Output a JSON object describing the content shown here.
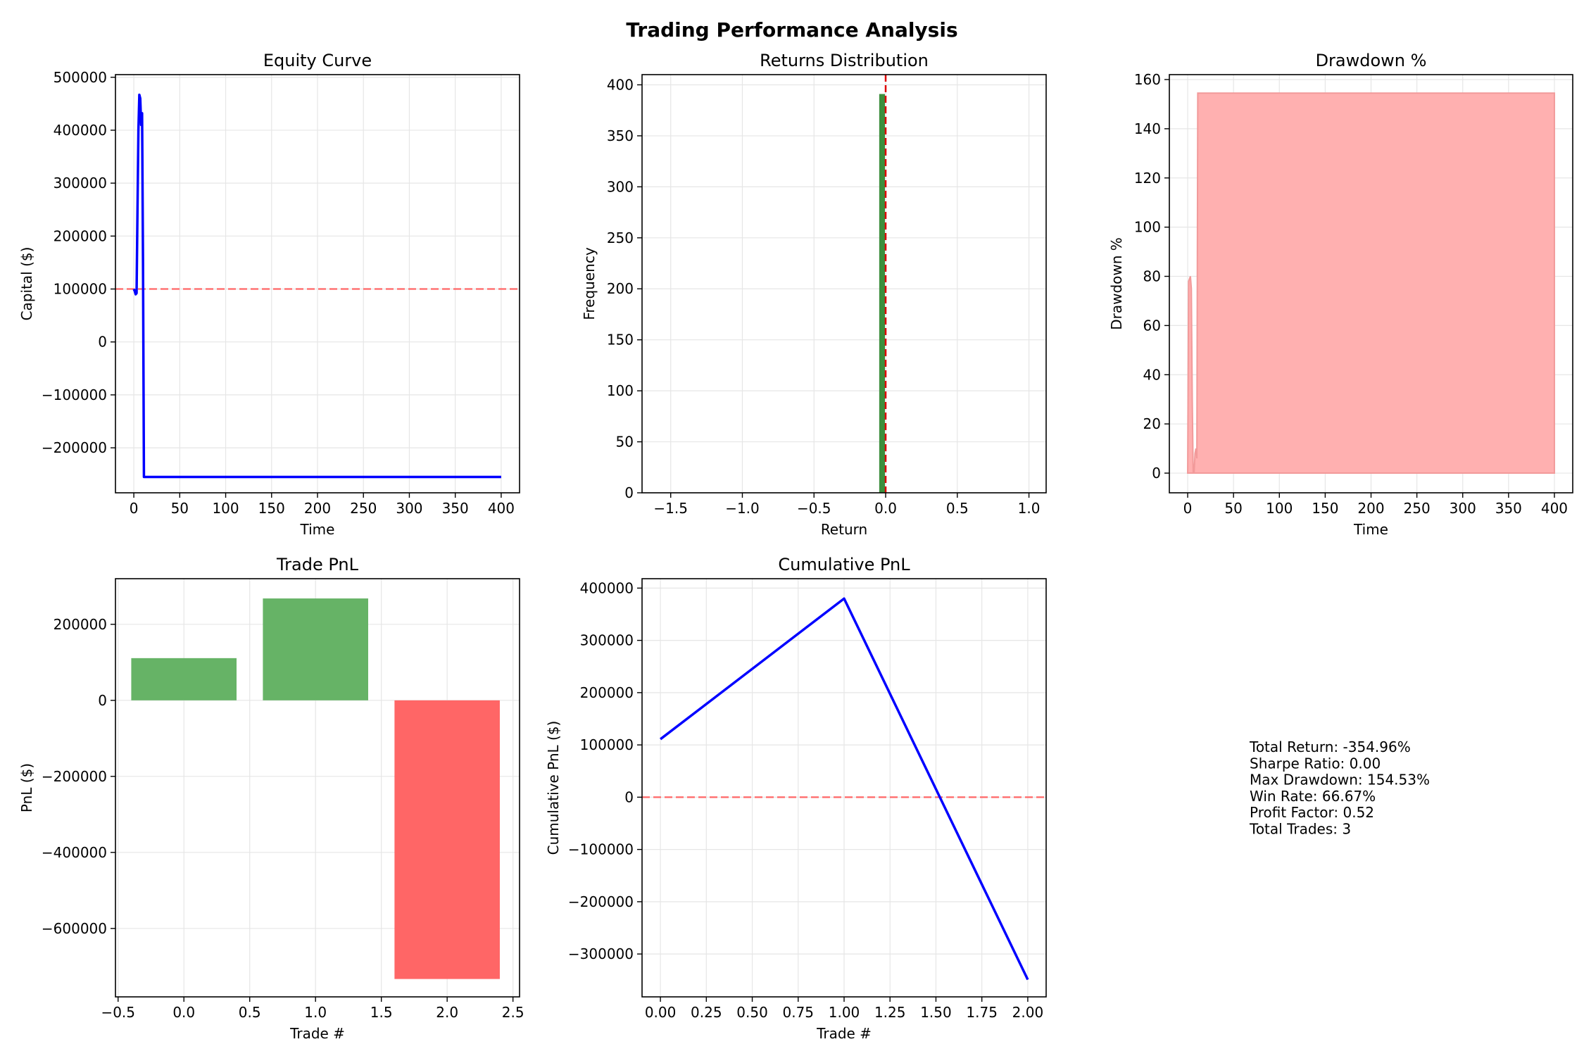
{
  "figure": {
    "title": "Trading Performance Analysis",
    "colors": {
      "equity_line": "#0000ff",
      "reference_line": "#ff6666",
      "hist_bar": "#3d8f3d",
      "zero_line": "#dd0000",
      "drawdown_fill": "#ffb0b0",
      "drawdown_edge": "#f29a9a",
      "win_bar": "#66b366",
      "loss_bar": "#ff6666",
      "grid": "#e6e6e6"
    }
  },
  "chart_data": [
    {
      "id": "equity",
      "type": "line",
      "title": "Equity Curve",
      "xlabel": "Time",
      "ylabel": "Capital ($)",
      "xlim": [
        -20,
        420
      ],
      "ylim": [
        -285000,
        505000
      ],
      "xticks": [
        0,
        50,
        100,
        150,
        200,
        250,
        300,
        350,
        400
      ],
      "xtick_labels": [
        "0",
        "50",
        "100",
        "150",
        "200",
        "250",
        "300",
        "350",
        "400"
      ],
      "yticks": [
        -200000,
        -100000,
        0,
        100000,
        200000,
        300000,
        400000,
        500000
      ],
      "ytick_labels": [
        "−200000",
        "−100000",
        "0",
        "100000",
        "200000",
        "300000",
        "400000",
        "500000"
      ],
      "grid": true,
      "reference_line": {
        "axis": "y",
        "value": 100000,
        "style": "dashed"
      },
      "series": [
        {
          "x": [
            0,
            1,
            2,
            3,
            4,
            5,
            6,
            7,
            8,
            9,
            10,
            11,
            12,
            400
          ],
          "y": [
            100000,
            96000,
            90000,
            92000,
            250000,
            400000,
            467000,
            460000,
            410000,
            432000,
            150000,
            -255000,
            -255000,
            -255000
          ]
        }
      ]
    },
    {
      "id": "returns",
      "type": "bar",
      "title": "Returns Distribution",
      "xlabel": "Return",
      "ylabel": "Frequency",
      "xlim": [
        -1.7,
        1.12
      ],
      "ylim": [
        0,
        410
      ],
      "xticks": [
        -1.5,
        -1.0,
        -0.5,
        0.0,
        0.5,
        1.0
      ],
      "xtick_labels": [
        "−1.5",
        "−1.0",
        "−0.5",
        "0.0",
        "0.5",
        "1.0"
      ],
      "yticks": [
        0,
        50,
        100,
        150,
        200,
        250,
        300,
        350,
        400
      ],
      "ytick_labels": [
        "0",
        "50",
        "100",
        "150",
        "200",
        "250",
        "300",
        "350",
        "400"
      ],
      "grid": true,
      "reference_line": {
        "axis": "x",
        "value": 0.0,
        "style": "dashed"
      },
      "bins": [
        {
          "x0": -0.045,
          "x1": -0.005,
          "count": 391
        }
      ]
    },
    {
      "id": "drawdown",
      "type": "area",
      "title": "Drawdown %",
      "xlabel": "Time",
      "ylabel": "Drawdown %",
      "xlim": [
        -20,
        420
      ],
      "ylim": [
        -8,
        162
      ],
      "xticks": [
        0,
        50,
        100,
        150,
        200,
        250,
        300,
        350,
        400
      ],
      "xtick_labels": [
        "0",
        "50",
        "100",
        "150",
        "200",
        "250",
        "300",
        "350",
        "400"
      ],
      "yticks": [
        0,
        20,
        40,
        60,
        80,
        100,
        120,
        140,
        160
      ],
      "ytick_labels": [
        "0",
        "20",
        "40",
        "60",
        "80",
        "100",
        "120",
        "140",
        "160"
      ],
      "grid": true,
      "series": [
        {
          "x": [
            0,
            1,
            2,
            3,
            4,
            5,
            6,
            7,
            8,
            9,
            10,
            11,
            12,
            400,
            400
          ],
          "y": [
            0,
            78,
            79,
            80,
            75,
            30,
            0,
            0,
            8,
            10,
            6,
            154.5,
            154.5,
            154.5,
            0
          ]
        }
      ]
    },
    {
      "id": "trade_pnl",
      "type": "bar",
      "title": "Trade PnL",
      "xlabel": "Trade #",
      "ylabel": "PnL ($)",
      "xlim": [
        -0.52,
        2.55
      ],
      "ylim": [
        -780000,
        320000
      ],
      "xticks": [
        -0.5,
        0.0,
        0.5,
        1.0,
        1.5,
        2.0,
        2.5
      ],
      "xtick_labels": [
        "−0.5",
        "0.0",
        "0.5",
        "1.0",
        "1.5",
        "2.0",
        "2.5"
      ],
      "yticks": [
        -600000,
        -400000,
        -200000,
        0,
        200000
      ],
      "ytick_labels": [
        "−600000",
        "−400000",
        "−200000",
        "0",
        "200000"
      ],
      "grid": true,
      "categories": [
        0,
        1,
        2
      ],
      "values": [
        111000,
        268000,
        -733000
      ],
      "bar_width": 0.8
    },
    {
      "id": "cumulative_pnl",
      "type": "line",
      "title": "Cumulative PnL",
      "xlabel": "Trade #",
      "ylabel": "Cumulative PnL ($)",
      "xlim": [
        -0.1,
        2.1
      ],
      "ylim": [
        -382000,
        418000
      ],
      "xticks": [
        0.0,
        0.25,
        0.5,
        0.75,
        1.0,
        1.25,
        1.5,
        1.75,
        2.0
      ],
      "xtick_labels": [
        "0.00",
        "0.25",
        "0.50",
        "0.75",
        "1.00",
        "1.25",
        "1.50",
        "1.75",
        "2.00"
      ],
      "yticks": [
        -300000,
        -200000,
        -100000,
        0,
        100000,
        200000,
        300000,
        400000
      ],
      "ytick_labels": [
        "−300000",
        "−200000",
        "−100000",
        "0",
        "100000",
        "200000",
        "300000",
        "400000"
      ],
      "grid": true,
      "reference_line": {
        "axis": "y",
        "value": 0,
        "style": "dashed"
      },
      "series": [
        {
          "x": [
            0,
            1,
            2
          ],
          "y": [
            111000,
            380000,
            -349000
          ]
        }
      ]
    }
  ],
  "stats": {
    "lines": [
      "Total Return: -354.96%",
      "Sharpe Ratio: 0.00",
      "Max Drawdown: 154.53%",
      "Win Rate: 66.67%",
      "Profit Factor: 0.52",
      "Total Trades: 3"
    ]
  }
}
